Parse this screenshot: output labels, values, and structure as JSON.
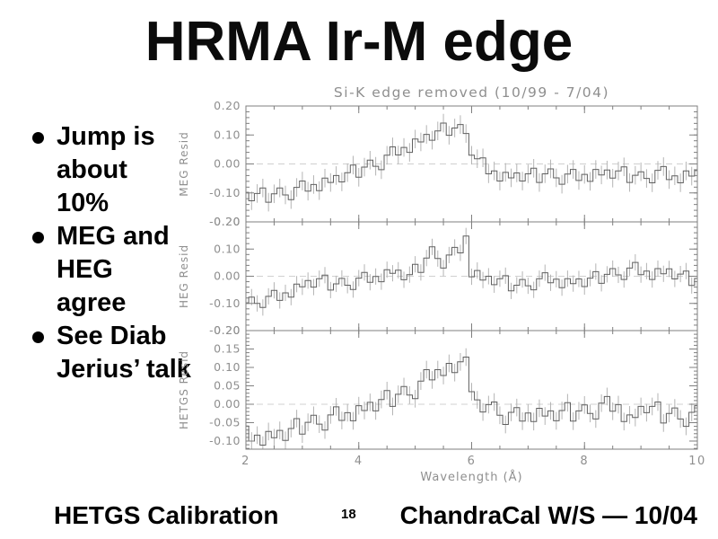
{
  "slide": {
    "title": "HRMA Ir-M edge",
    "bullets": [
      "Jump is\nabout\n10%",
      "MEG and\nHEG\nagree",
      "See Diab\nJerius’ talk"
    ],
    "footer": {
      "left": "HETGS Calibration",
      "page": "18",
      "right": "ChandraCal W/S — 10/04"
    }
  },
  "chart_data": {
    "type": "line",
    "style": "stepped histogram with vertical error bars, 3 stacked panels sharing x-axis",
    "title": "Si-K edge removed (10/99 - 7/04)",
    "xlabel": "Wavelength (Å)",
    "x_range": [
      2,
      10
    ],
    "x_ticks": [
      2,
      4,
      6,
      8,
      10
    ],
    "x_minor_step": 0.5,
    "x_start": 2.0,
    "x_step": 0.1,
    "grid": false,
    "legend": "none",
    "colors": {
      "axis": "#7f7f7f",
      "text": "#8f8f8f",
      "data": "#5f5f5f",
      "error": "#b4b4b4",
      "zero_line": "#d0d0d0"
    },
    "panels": [
      {
        "ylabel": "MEG Resid",
        "ylim": [
          -0.2,
          0.2
        ],
        "yticks": [
          0.2,
          0.1,
          0.0,
          -0.1,
          -0.2
        ],
        "zero_line": true,
        "err": 0.032,
        "values": [
          -0.098,
          -0.127,
          -0.102,
          -0.083,
          -0.132,
          -0.103,
          -0.083,
          -0.107,
          -0.123,
          -0.081,
          -0.059,
          -0.094,
          -0.071,
          -0.092,
          -0.049,
          -0.064,
          -0.04,
          -0.062,
          -0.03,
          -0.004,
          -0.046,
          -0.011,
          0.013,
          -0.008,
          -0.02,
          0.03,
          0.059,
          0.031,
          0.057,
          0.04,
          0.086,
          0.076,
          0.102,
          0.082,
          0.114,
          0.141,
          0.099,
          0.124,
          0.136,
          0.105,
          0.03,
          0.018,
          0.021,
          -0.034,
          -0.024,
          -0.059,
          -0.029,
          -0.048,
          -0.031,
          -0.059,
          -0.034,
          -0.015,
          -0.064,
          -0.034,
          -0.017,
          -0.048,
          -0.07,
          -0.035,
          -0.019,
          -0.057,
          -0.036,
          -0.06,
          -0.019,
          -0.038,
          -0.021,
          -0.049,
          -0.024,
          -0.01,
          -0.064,
          -0.039,
          -0.027,
          -0.05,
          -0.065,
          -0.022,
          -0.009,
          -0.054,
          -0.041,
          -0.065,
          -0.024,
          -0.042,
          -0.023
        ]
      },
      {
        "ylabel": "HEG Resid",
        "ylim": [
          -0.2,
          0.2
        ],
        "yticks": [
          0.2,
          0.1,
          0.0,
          -0.1,
          -0.2
        ],
        "zero_line": true,
        "err": 0.03,
        "values": [
          -0.098,
          -0.077,
          -0.1,
          -0.115,
          -0.074,
          -0.052,
          -0.089,
          -0.061,
          -0.077,
          -0.029,
          -0.039,
          -0.016,
          -0.04,
          -0.009,
          0.004,
          -0.051,
          -0.028,
          -0.008,
          -0.033,
          -0.049,
          -0.007,
          0.014,
          -0.022,
          -0.001,
          -0.02,
          0.024,
          0.011,
          0.022,
          -0.013,
          0.006,
          0.044,
          0.014,
          0.067,
          0.108,
          0.065,
          0.03,
          0.078,
          0.106,
          0.086,
          0.148,
          -0.002,
          0.021,
          -0.014,
          0.0,
          -0.031,
          -0.009,
          0.002,
          -0.054,
          -0.033,
          -0.012,
          -0.035,
          -0.05,
          -0.009,
          0.013,
          -0.024,
          -0.011,
          -0.042,
          -0.009,
          -0.027,
          -0.01,
          -0.038,
          -0.007,
          0.017,
          -0.026,
          0.007,
          0.028,
          0.005,
          -0.012,
          0.03,
          0.051,
          0.006,
          0.019,
          -0.012,
          0.028,
          0.009,
          0.027,
          -0.01,
          0.008,
          0.019,
          -0.034,
          -0.008
        ]
      },
      {
        "ylabel": "HETGS Resid",
        "ylim": [
          -0.122,
          0.2
        ],
        "yticks": [
          0.2,
          0.15,
          0.1,
          0.05,
          0.0,
          -0.05,
          -0.1
        ],
        "zero_line": true,
        "err": 0.024,
        "values": [
          -0.059,
          -0.1,
          -0.084,
          -0.111,
          -0.074,
          -0.091,
          -0.071,
          -0.098,
          -0.066,
          -0.039,
          -0.081,
          -0.049,
          -0.03,
          -0.054,
          -0.07,
          -0.029,
          -0.007,
          -0.044,
          -0.023,
          -0.045,
          -0.004,
          -0.017,
          0.005,
          -0.018,
          0.013,
          0.037,
          -0.006,
          0.027,
          0.048,
          0.025,
          0.015,
          0.063,
          0.094,
          0.066,
          0.094,
          0.078,
          0.111,
          0.086,
          0.115,
          0.128,
          0.034,
          0.012,
          -0.021,
          -0.001,
          0.006,
          -0.03,
          -0.055,
          -0.022,
          -0.009,
          -0.046,
          -0.024,
          -0.047,
          -0.011,
          -0.032,
          -0.018,
          -0.045,
          -0.017,
          0.004,
          -0.046,
          -0.018,
          -0.002,
          -0.025,
          -0.04,
          0.003,
          0.021,
          -0.019,
          -0.001,
          -0.047,
          -0.029,
          -0.036,
          -0.006,
          -0.023,
          -0.006,
          0.006,
          -0.051,
          -0.025,
          -0.01,
          -0.04,
          -0.06,
          -0.022,
          -0.004
        ]
      }
    ]
  }
}
